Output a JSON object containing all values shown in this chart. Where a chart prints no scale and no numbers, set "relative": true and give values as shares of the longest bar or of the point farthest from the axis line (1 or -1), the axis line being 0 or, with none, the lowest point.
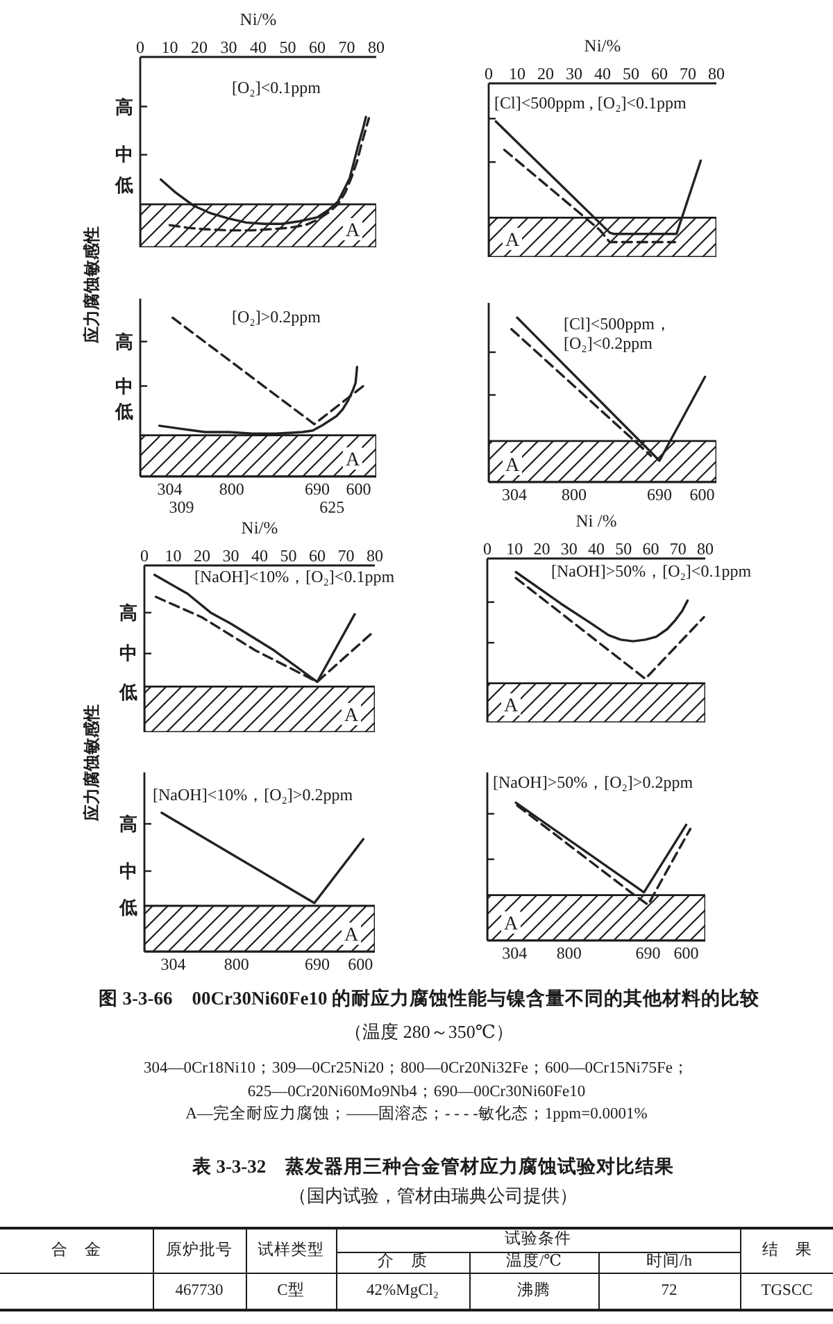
{
  "chart_data": [
    {
      "type": "line",
      "title": "[O₂]<0.1ppm",
      "ylabel": "应力腐蚀敏感性",
      "xlabel": "Ni/%",
      "xlim": [
        0,
        80
      ],
      "xticks": [
        0,
        10,
        20,
        30,
        40,
        50,
        60,
        70,
        80
      ],
      "tick_labels": "x",
      "relative": true,
      "annotations": [
        "高",
        "中",
        "低"
      ],
      "bands": [
        {
          "axis": "y",
          "from": 0,
          "to": 0.33,
          "label": "A"
        }
      ],
      "series": [
        {
          "color": "#222222",
          "line_style": "solid",
          "x": [
            7,
            12,
            18,
            24,
            30,
            36,
            42,
            48,
            54,
            60,
            64,
            67,
            69,
            71,
            72.5,
            74,
            75.5,
            76.5
          ],
          "values": [
            0.52,
            0.42,
            0.32,
            0.26,
            0.22,
            0.19,
            0.18,
            0.18,
            0.2,
            0.23,
            0.29,
            0.35,
            0.44,
            0.53,
            0.66,
            0.79,
            0.91,
            1.0
          ]
        },
        {
          "color": "#222222",
          "line_style": "dashed",
          "x": [
            10,
            16,
            21,
            30,
            37.5,
            45,
            50.5,
            56,
            60,
            64,
            67,
            69.5,
            71.5,
            73.5,
            75,
            76.5,
            77.5
          ],
          "values": [
            0.17,
            0.15,
            0.14,
            0.13,
            0.13,
            0.14,
            0.15,
            0.17,
            0.21,
            0.27,
            0.33,
            0.42,
            0.53,
            0.66,
            0.79,
            0.91,
            0.99
          ]
        }
      ]
    },
    {
      "type": "line",
      "title": "[Cl]<500ppm , [O₂]<0.1ppm",
      "xlabel": "Ni/%",
      "xlim": [
        0,
        80
      ],
      "xticks": [
        0,
        10,
        20,
        30,
        40,
        50,
        60,
        70,
        80
      ],
      "tick_labels": "x",
      "relative": true,
      "bands": [
        {
          "axis": "y",
          "from": 0,
          "to": 0.29,
          "label": "A"
        }
      ],
      "series": [
        {
          "color": "#222222",
          "line_style": "solid",
          "x": [
            2.5,
            42.5,
            44,
            66,
            74.5
          ],
          "values": [
            1.0,
            0.18,
            0.17,
            0.17,
            0.71
          ]
        },
        {
          "color": "#222222",
          "line_style": "dashed",
          "x": [
            5.5,
            39,
            42.5,
            65.5
          ],
          "values": [
            0.79,
            0.2,
            0.11,
            0.11
          ]
        }
      ]
    },
    {
      "type": "line",
      "title": "[O₂]>0.2ppm",
      "xlim": [
        0,
        80
      ],
      "tick_labels": false,
      "relative": true,
      "annotations": [
        "高",
        "中",
        "低",
        "304",
        "309",
        "800",
        "690",
        "625",
        "600"
      ],
      "bands": [
        {
          "axis": "y",
          "from": 0,
          "to": 0.26,
          "label": "A"
        }
      ],
      "series": [
        {
          "color": "#222222",
          "line_style": "solid",
          "x": [
            6.5,
            14,
            22,
            30,
            38,
            46,
            55,
            58.5,
            61.5,
            64,
            66.5,
            68.5,
            70.5,
            72,
            73,
            73.5
          ],
          "values": [
            0.32,
            0.3,
            0.28,
            0.28,
            0.27,
            0.27,
            0.28,
            0.29,
            0.32,
            0.35,
            0.38,
            0.42,
            0.48,
            0.54,
            0.59,
            0.69
          ]
        },
        {
          "color": "#222222",
          "line_style": "dashed",
          "x": [
            11,
            59,
            77
          ],
          "values": [
            1.0,
            0.33,
            0.59
          ]
        }
      ]
    },
    {
      "type": "line",
      "title": "[Cl]<500ppm，[O₂]<0.2ppm",
      "xlim": [
        0,
        80
      ],
      "tick_labels": false,
      "relative": true,
      "annotations": [
        "304",
        "800",
        "690",
        "600"
      ],
      "bands": [
        {
          "axis": "y",
          "from": 0,
          "to": 0.25,
          "label": "A"
        }
      ],
      "series": [
        {
          "color": "#222222",
          "line_style": "solid",
          "x": [
            10,
            60,
            76
          ],
          "values": [
            1.0,
            0.13,
            0.64
          ]
        },
        {
          "color": "#222222",
          "line_style": "dashed",
          "x": [
            8,
            57
          ],
          "values": [
            0.93,
            0.16
          ]
        }
      ]
    },
    {
      "type": "line",
      "title": "[NaOH]<10%，[O₂]<0.1ppm",
      "ylabel": "应力腐蚀敏感性",
      "xlabel": "Ni/%",
      "xlim": [
        0,
        80
      ],
      "xticks": [
        0,
        10,
        20,
        30,
        40,
        50,
        60,
        70,
        80
      ],
      "tick_labels": "x",
      "relative": true,
      "annotations": [
        "高",
        "中",
        "低"
      ],
      "bands": [
        {
          "axis": "y",
          "from": 0,
          "to": 0.29,
          "label": "A"
        }
      ],
      "series": [
        {
          "color": "#222222",
          "line_style": "solid",
          "x": [
            3.5,
            15,
            23,
            30,
            45,
            60,
            73
          ],
          "values": [
            1.0,
            0.88,
            0.76,
            0.69,
            0.52,
            0.32,
            0.75
          ]
        },
        {
          "color": "#222222",
          "line_style": "dashed",
          "x": [
            4,
            20,
            38.5,
            60,
            79
          ],
          "values": [
            0.86,
            0.73,
            0.52,
            0.32,
            0.63
          ]
        }
      ]
    },
    {
      "type": "line",
      "title": "[NaOH]>50%，[O₂]<0.1ppm",
      "xlabel": "Ni /%",
      "xlim": [
        0,
        80
      ],
      "xticks": [
        0,
        10,
        20,
        30,
        40,
        50,
        60,
        70,
        80
      ],
      "tick_labels": "x",
      "relative": true,
      "bands": [
        {
          "axis": "y",
          "from": 0,
          "to": 0.26,
          "label": "A"
        }
      ],
      "series": [
        {
          "color": "#222222",
          "line_style": "solid",
          "x": [
            10.5,
            27,
            38,
            44.5,
            49,
            53.5,
            58,
            62,
            66,
            69,
            71.5,
            73.5
          ],
          "values": [
            1.0,
            0.79,
            0.66,
            0.58,
            0.55,
            0.54,
            0.55,
            0.57,
            0.62,
            0.68,
            0.74,
            0.81
          ]
        },
        {
          "color": "#222222",
          "line_style": "dashed",
          "x": [
            10.5,
            58,
            79.5
          ],
          "values": [
            0.96,
            0.29,
            0.7
          ]
        }
      ]
    },
    {
      "type": "line",
      "title": "[NaOH]<10%，[O₂]>0.2ppm",
      "xlim": [
        0,
        80
      ],
      "tick_labels": false,
      "relative": true,
      "annotations": [
        "高",
        "中",
        "低",
        "304",
        "800",
        "690",
        "600"
      ],
      "bands": [
        {
          "axis": "y",
          "from": 0,
          "to": 0.33,
          "label": "A"
        }
      ],
      "series": [
        {
          "color": "#222222",
          "line_style": "solid",
          "x": [
            6,
            59,
            76
          ],
          "values": [
            1.0,
            0.35,
            0.81
          ]
        }
      ]
    },
    {
      "type": "line",
      "title": "[NaOH]>50%，[O₂]>0.2ppm",
      "xlim": [
        0,
        80
      ],
      "tick_labels": false,
      "relative": true,
      "annotations": [
        "304",
        "800",
        "690",
        "600"
      ],
      "bands": [
        {
          "axis": "y",
          "from": 0,
          "to": 0.33,
          "label": "A"
        }
      ],
      "series": [
        {
          "color": "#222222",
          "line_style": "solid",
          "x": [
            10.5,
            57.5,
            73
          ],
          "values": [
            1.0,
            0.35,
            0.84
          ]
        },
        {
          "color": "#222222",
          "line_style": "dashed",
          "x": [
            11,
            54,
            59,
            74.5
          ],
          "values": [
            0.98,
            0.33,
            0.26,
            0.81
          ]
        }
      ]
    },
    {
      "type": "other",
      "title": "图 3-3-66　00Cr30Ni60Fe10 的耐应力腐蚀性能与镍含量不同的其他材料的比较",
      "subtitle": "（温度 280～350℃）",
      "annotations": [
        "304—0Cr18Ni10；309—0Cr25Ni20；800—0Cr20Ni32Fe；600—0Cr15Ni75Fe；",
        "625—0Cr20Ni60Mo9Nb4；690—00Cr30Ni60Fe10",
        "A—完全耐应力腐蚀；——固溶态；- - - -敏化态；1ppm=0.0001%"
      ]
    },
    {
      "type": "other",
      "title": "表 3-3-32　蒸发器用三种合金管材应力腐蚀试验对比结果",
      "subtitle": "（国内试验，管材由瑞典公司提供）",
      "annotations": [
        "合　金",
        "原炉批号",
        "试样类型",
        "试验条件",
        "介　质",
        "温度/℃",
        "时间/h",
        "结　果",
        "467730",
        "C型",
        "42%MgCl₂",
        "沸腾",
        "72",
        "TGSCC"
      ]
    }
  ]
}
